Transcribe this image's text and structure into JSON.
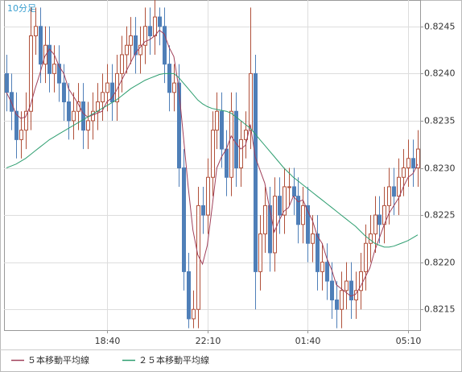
{
  "chart_data": {
    "type": "candlestick",
    "title": "10分足",
    "categories": [
      null,
      null,
      null,
      null,
      null,
      null,
      null,
      null,
      null,
      null,
      null,
      null,
      null,
      null,
      null,
      null,
      null,
      null,
      null,
      null,
      null,
      "18:40",
      null,
      null,
      null,
      null,
      null,
      null,
      null,
      null,
      null,
      null,
      null,
      null,
      null,
      null,
      null,
      null,
      null,
      null,
      null,
      null,
      "22:10",
      null,
      null,
      null,
      null,
      null,
      null,
      null,
      null,
      null,
      null,
      null,
      null,
      null,
      null,
      null,
      null,
      null,
      null,
      null,
      null,
      "01:40",
      null,
      null,
      null,
      null,
      null,
      null,
      null,
      null,
      null,
      null,
      null,
      null,
      null,
      null,
      null,
      null,
      null,
      null,
      null,
      null,
      "05:10",
      null,
      null
    ],
    "open": [
      0.824,
      0.8238,
      0.8236,
      0.8233,
      0.8234,
      0.8236,
      0.8244,
      0.8245,
      0.8241,
      0.8243,
      0.824,
      0.8241,
      0.8239,
      0.8237,
      0.8235,
      0.8236,
      0.8237,
      0.8234,
      0.8235,
      0.8236,
      0.8237,
      0.8238,
      0.8239,
      0.8237,
      0.824,
      0.8242,
      0.8243,
      0.8244,
      0.8242,
      0.8243,
      0.8245,
      0.8244,
      0.8246,
      0.8245,
      0.8241,
      0.8238,
      0.8239,
      0.823,
      0.8219,
      0.8214,
      0.8215,
      0.8226,
      0.8225,
      0.8229,
      0.8234,
      0.8236,
      0.8232,
      0.8229,
      0.8236,
      0.823,
      0.8233,
      0.8234,
      0.824,
      0.8219,
      0.8223,
      0.8226,
      0.8221,
      0.8227,
      0.8225,
      0.8228,
      0.8228,
      0.8227,
      0.8224,
      0.8226,
      0.8222,
      0.8223,
      0.8219,
      0.822,
      0.8218,
      0.8216,
      0.8215,
      0.8217,
      0.8218,
      0.8216,
      0.8217,
      0.8219,
      0.8222,
      0.8223,
      0.8225,
      0.8224,
      0.8226,
      0.8228,
      0.8227,
      0.8229,
      0.823,
      0.8231,
      0.823
    ],
    "high": [
      0.8242,
      0.824,
      0.8238,
      0.8236,
      0.8238,
      0.8247,
      0.8247,
      0.8247,
      0.8245,
      0.8245,
      0.8243,
      0.8243,
      0.8241,
      0.8239,
      0.8238,
      0.8239,
      0.8239,
      0.8237,
      0.8238,
      0.8239,
      0.824,
      0.8241,
      0.8241,
      0.8242,
      0.8244,
      0.8245,
      0.8246,
      0.8246,
      0.8245,
      0.8247,
      0.8247,
      0.8248,
      0.8247,
      0.8247,
      0.8243,
      0.8241,
      0.8241,
      0.8232,
      0.8221,
      0.8217,
      0.8228,
      0.8228,
      0.8231,
      0.8236,
      0.8238,
      0.8238,
      0.8234,
      0.8238,
      0.8238,
      0.8235,
      0.8236,
      0.8247,
      0.8242,
      0.8225,
      0.8228,
      0.8228,
      0.8229,
      0.8229,
      0.823,
      0.823,
      0.823,
      0.8229,
      0.8228,
      0.8228,
      0.8225,
      0.8225,
      0.8222,
      0.8222,
      0.822,
      0.8218,
      0.8219,
      0.822,
      0.822,
      0.8219,
      0.8221,
      0.8224,
      0.8225,
      0.8227,
      0.8227,
      0.8228,
      0.823,
      0.823,
      0.8231,
      0.8232,
      0.8233,
      0.8233,
      0.8234
    ],
    "low": [
      0.8236,
      0.8234,
      0.8231,
      0.8231,
      0.8232,
      0.8234,
      0.8242,
      0.8239,
      0.8239,
      0.8238,
      0.8238,
      0.8237,
      0.8235,
      0.8233,
      0.8233,
      0.8234,
      0.8232,
      0.8232,
      0.8233,
      0.8234,
      0.8235,
      0.8236,
      0.8235,
      0.8235,
      0.8238,
      0.824,
      0.8241,
      0.824,
      0.824,
      0.8241,
      0.8242,
      0.8242,
      0.8243,
      0.8239,
      0.8236,
      0.8236,
      0.8228,
      0.8217,
      0.8213,
      0.8213,
      0.8213,
      0.8223,
      0.8223,
      0.8227,
      0.8232,
      0.823,
      0.8227,
      0.8227,
      0.8228,
      0.8228,
      0.8231,
      0.8232,
      0.8215,
      0.8217,
      0.8221,
      0.8219,
      0.8219,
      0.8223,
      0.8223,
      0.8226,
      0.8225,
      0.8222,
      0.8222,
      0.822,
      0.822,
      0.8217,
      0.8217,
      0.8216,
      0.8214,
      0.8213,
      0.8213,
      0.8215,
      0.8214,
      0.8214,
      0.8215,
      0.8217,
      0.822,
      0.8221,
      0.8222,
      0.8222,
      0.8224,
      0.8225,
      0.8225,
      0.8227,
      0.8228,
      0.8228,
      0.8228
    ],
    "close": [
      0.8238,
      0.8236,
      0.8233,
      0.8234,
      0.8236,
      0.8244,
      0.8245,
      0.8241,
      0.8243,
      0.824,
      0.8241,
      0.8239,
      0.8237,
      0.8235,
      0.8236,
      0.8237,
      0.8234,
      0.8235,
      0.8236,
      0.8237,
      0.8238,
      0.8239,
      0.8237,
      0.824,
      0.8242,
      0.8243,
      0.8244,
      0.8242,
      0.8243,
      0.8245,
      0.8244,
      0.8246,
      0.8245,
      0.8241,
      0.8238,
      0.8239,
      0.823,
      0.8219,
      0.8214,
      0.8215,
      0.8226,
      0.8225,
      0.8229,
      0.8234,
      0.8236,
      0.8232,
      0.8229,
      0.8236,
      0.823,
      0.8233,
      0.8234,
      0.824,
      0.8219,
      0.8223,
      0.8226,
      0.8221,
      0.8227,
      0.8225,
      0.8228,
      0.8228,
      0.8227,
      0.8224,
      0.8226,
      0.8222,
      0.8223,
      0.8219,
      0.822,
      0.8218,
      0.8216,
      0.8215,
      0.8217,
      0.8218,
      0.8216,
      0.8217,
      0.8219,
      0.8222,
      0.8223,
      0.8225,
      0.8224,
      0.8226,
      0.8228,
      0.8227,
      0.8229,
      0.823,
      0.8231,
      0.823,
      0.8232
    ],
    "up_color": "#b0503a",
    "down_color": "#4f7fb8",
    "series": [
      {
        "name": "５本移動平均線",
        "color": "#a0405a",
        "values": [
          0.8238,
          0.8237,
          0.82357,
          0.823525,
          0.82354,
          0.82366,
          0.82384,
          0.824,
          0.82418,
          0.82426,
          0.8242,
          0.82408,
          0.824,
          0.82384,
          0.82376,
          0.82368,
          0.82358,
          0.82354,
          0.82356,
          0.82358,
          0.8236,
          0.8237,
          0.82374,
          0.82382,
          0.82392,
          0.82402,
          0.82412,
          0.82422,
          0.82428,
          0.82434,
          0.82436,
          0.8244,
          0.82446,
          0.82442,
          0.82428,
          0.82418,
          0.82386,
          0.82334,
          0.8228,
          0.82234,
          0.82208,
          0.82198,
          0.82218,
          0.82258,
          0.823,
          0.82312,
          0.8232,
          0.82334,
          0.82326,
          0.8232,
          0.82324,
          0.82346,
          0.82312,
          0.82298,
          0.82284,
          0.82258,
          0.82232,
          0.82244,
          0.82254,
          0.82258,
          0.8227,
          0.82264,
          0.82266,
          0.82254,
          0.82244,
          0.82228,
          0.8222,
          0.82204,
          0.82192,
          0.82176,
          0.82172,
          0.82168,
          0.82164,
          0.82166,
          0.82174,
          0.82184,
          0.82194,
          0.82212,
          0.82226,
          0.8224,
          0.82252,
          0.8226,
          0.82268,
          0.8228,
          0.8229,
          0.82294,
          0.82304
        ]
      },
      {
        "name": "２５本移動平均線",
        "color": "#2e9e70",
        "values": [
          0.823,
          0.82302,
          0.82304,
          0.82307,
          0.8231,
          0.82314,
          0.82318,
          0.82322,
          0.82326,
          0.8233,
          0.82333,
          0.82336,
          0.82339,
          0.82342,
          0.82345,
          0.82348,
          0.82351,
          0.82354,
          0.82357,
          0.8236,
          0.82363,
          0.82366,
          0.82369,
          0.82372,
          0.82376,
          0.8238,
          0.82384,
          0.82387,
          0.8239,
          0.82393,
          0.82395,
          0.82397,
          0.82399,
          0.824,
          0.824,
          0.824,
          0.82396,
          0.8239,
          0.82384,
          0.82378,
          0.82372,
          0.82368,
          0.82365,
          0.82363,
          0.82362,
          0.82361,
          0.8236,
          0.82358,
          0.82354,
          0.8235,
          0.82346,
          0.82342,
          0.82336,
          0.8233,
          0.82324,
          0.82318,
          0.82312,
          0.82306,
          0.823,
          0.82295,
          0.8229,
          0.82286,
          0.82282,
          0.82278,
          0.82274,
          0.8227,
          0.82266,
          0.82262,
          0.82258,
          0.82254,
          0.8225,
          0.82246,
          0.82242,
          0.82238,
          0.82233,
          0.82228,
          0.82224,
          0.8222,
          0.82218,
          0.82216,
          0.82216,
          0.82217,
          0.82219,
          0.82221,
          0.82223,
          0.82226,
          0.82229
        ]
      }
    ],
    "ylim": [
      0.82128,
      0.82478
    ],
    "yticks": [
      0.8215,
      {
        "value": 0.822,
        "label": "0.8220"
      },
      0.8225,
      {
        "value": 0.823,
        "label": "0.8230"
      },
      0.8235,
      {
        "value": 0.824,
        "label": "0.8240"
      },
      0.8245
    ],
    "grid": true
  }
}
